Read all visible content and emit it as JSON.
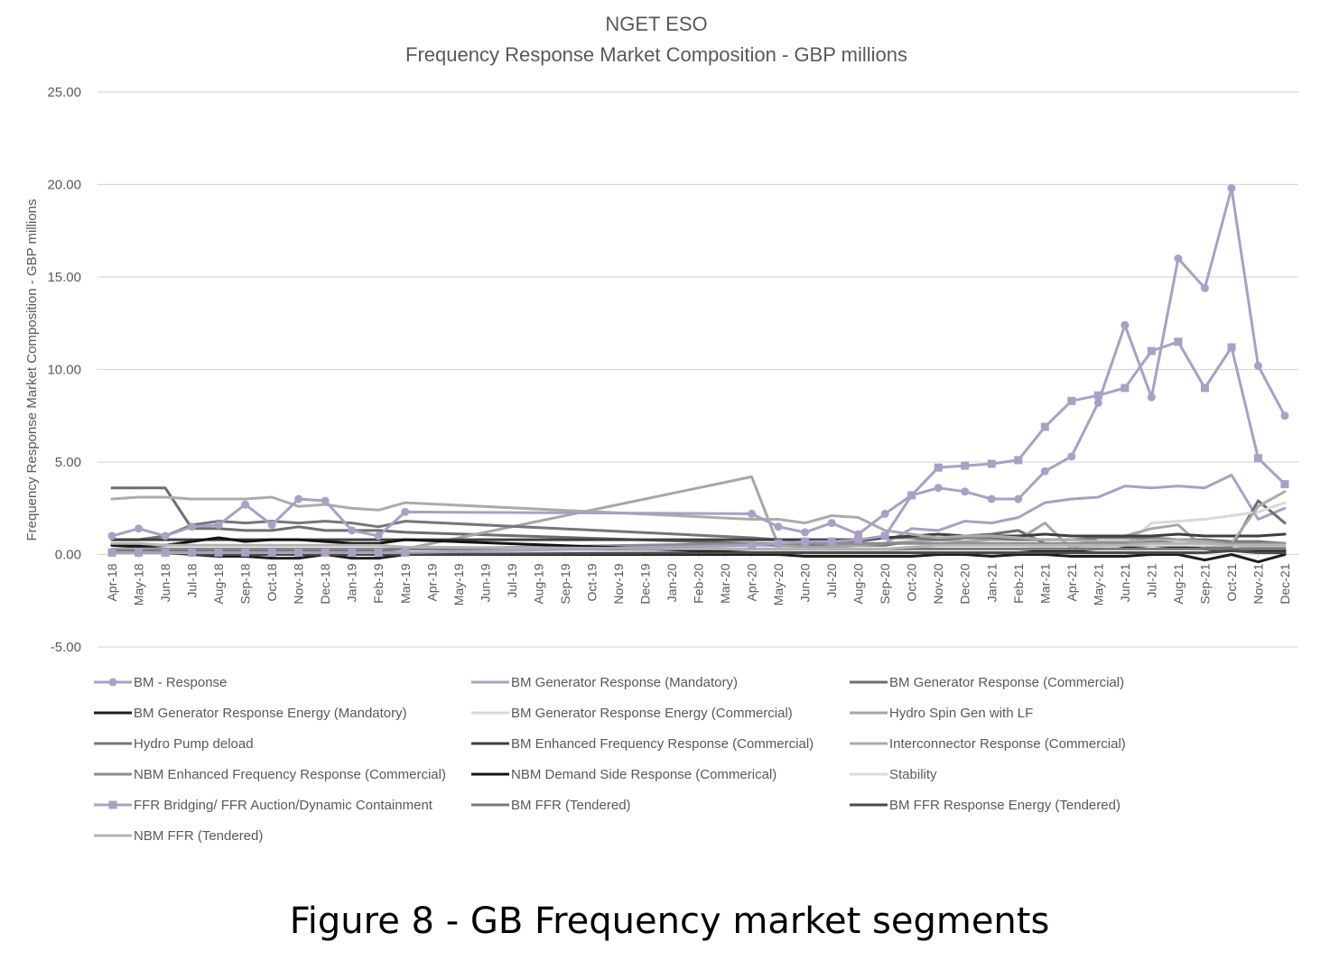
{
  "caption": "Figure 8 - GB Frequency market segments",
  "chart_data": {
    "type": "line",
    "title": "NGET ESO",
    "subtitle": "Frequency Response Market Composition - GBP millions",
    "xlabel": "",
    "ylabel": "Frequency Response Market Composition - GBP millions",
    "ylim": [
      -5,
      25
    ],
    "yticks": [
      -5,
      0,
      5,
      10,
      15,
      20,
      25
    ],
    "ytick_labels": [
      "-5.00",
      "0.00",
      "5.00",
      "10.00",
      "15.00",
      "20.00",
      "25.00"
    ],
    "grid": true,
    "legend_position": "bottom",
    "categories": [
      "Apr-18",
      "May-18",
      "Jun-18",
      "Jul-18",
      "Aug-18",
      "Sep-18",
      "Oct-18",
      "Nov-18",
      "Dec-18",
      "Jan-19",
      "Feb-19",
      "Mar-19",
      "Apr-19",
      "May-19",
      "Jun-19",
      "Jul-19",
      "Aug-19",
      "Sep-19",
      "Oct-19",
      "Nov-19",
      "Dec-19",
      "Jan-20",
      "Feb-20",
      "Mar-20",
      "Apr-20",
      "May-20",
      "Jun-20",
      "Jul-20",
      "Aug-20",
      "Sep-20",
      "Oct-20",
      "Nov-20",
      "Dec-20",
      "Jan-21",
      "Feb-21",
      "Mar-21",
      "Apr-21",
      "May-21",
      "Jun-21",
      "Jul-21",
      "Aug-21",
      "Sep-21",
      "Oct-21",
      "Nov-21",
      "Dec-21"
    ],
    "series": [
      {
        "name": "BM - Response",
        "color": "#aa9fc4",
        "width": 3,
        "marker": "circle",
        "values": [
          1.0,
          1.4,
          1.0,
          1.5,
          1.6,
          2.7,
          1.6,
          3.0,
          2.9,
          1.3,
          1.0,
          2.3,
          null,
          null,
          null,
          null,
          null,
          null,
          null,
          null,
          null,
          null,
          null,
          null,
          2.2,
          1.5,
          1.2,
          1.7,
          1.1,
          2.2,
          3.2,
          3.6,
          3.4,
          3.0,
          3.0,
          4.5,
          5.3,
          8.2,
          12.4,
          8.5,
          16.0,
          14.4,
          19.8,
          10.2,
          7.5
        ]
      },
      {
        "name": "BM Generator Response (Mandatory)",
        "color": "#aa9fc4",
        "width": 3,
        "marker": "none",
        "values": [
          0.2,
          0.2,
          0.2,
          0.2,
          0.2,
          0.2,
          0.2,
          0.2,
          0.2,
          0.2,
          0.2,
          0.3,
          null,
          null,
          null,
          null,
          null,
          null,
          null,
          null,
          null,
          null,
          null,
          null,
          0.5,
          0.5,
          0.5,
          0.5,
          0.5,
          0.6,
          1.4,
          1.3,
          1.8,
          1.7,
          2.0,
          2.8,
          3.0,
          3.1,
          3.7,
          3.6,
          3.7,
          3.6,
          4.3,
          1.9,
          2.5
        ]
      },
      {
        "name": "BM Generator Response (Commercial)",
        "color": "#6e6e6e",
        "width": 3,
        "marker": "none",
        "values": [
          3.6,
          3.6,
          3.6,
          1.4,
          1.4,
          1.3,
          1.3,
          1.5,
          1.3,
          1.3,
          1.3,
          1.2,
          null,
          null,
          null,
          null,
          null,
          null,
          null,
          null,
          null,
          null,
          null,
          null,
          0.6,
          0.5,
          0.5,
          0.4,
          0.5,
          0.5,
          0.7,
          0.8,
          1.0,
          1.1,
          1.3,
          0.6,
          0.5,
          0.5,
          0.6,
          0.7,
          0.6,
          0.4,
          0.4,
          2.9,
          1.7
        ]
      },
      {
        "name": "BM Generator Response Energy (Mandatory)",
        "color": "#1e1e1e",
        "width": 3,
        "marker": "none",
        "values": [
          0.5,
          0.4,
          0.3,
          0.0,
          -0.1,
          -0.1,
          -0.2,
          -0.2,
          0.0,
          -0.2,
          -0.2,
          0.0,
          null,
          null,
          null,
          null,
          null,
          null,
          null,
          null,
          null,
          null,
          null,
          null,
          0.0,
          0.0,
          -0.1,
          -0.1,
          -0.1,
          -0.1,
          -0.1,
          0.0,
          0.0,
          -0.1,
          0.0,
          0.0,
          -0.1,
          -0.1,
          -0.1,
          0.0,
          0.0,
          -0.3,
          0.0,
          -0.4,
          0.0
        ]
      },
      {
        "name": "BM Generator Response Energy (Commercial)",
        "color": "#d9d9d9",
        "width": 3,
        "marker": "none",
        "values": [
          0.2,
          0.2,
          0.2,
          0.2,
          0.1,
          0.1,
          0.1,
          0.1,
          0.1,
          0.1,
          0.1,
          0.1,
          null,
          null,
          null,
          null,
          null,
          null,
          null,
          null,
          null,
          null,
          null,
          null,
          0.2,
          0.2,
          0.2,
          0.2,
          0.2,
          0.2,
          0.3,
          0.3,
          0.3,
          0.3,
          0.3,
          0.4,
          0.3,
          0.4,
          0.5,
          1.7,
          1.8,
          1.9,
          2.1,
          2.3,
          2.8
        ]
      },
      {
        "name": "Hydro Spin Gen with LF",
        "color": "#a6a6a6",
        "width": 3,
        "marker": "none",
        "values": [
          0.3,
          0.3,
          0.3,
          0.3,
          0.3,
          0.3,
          0.3,
          0.3,
          0.3,
          0.3,
          0.3,
          0.3,
          null,
          null,
          null,
          null,
          null,
          null,
          null,
          null,
          null,
          null,
          null,
          null,
          4.2,
          0.5,
          0.4,
          0.4,
          0.5,
          0.6,
          0.7,
          0.8,
          0.7,
          0.8,
          0.8,
          1.7,
          0.3,
          0.9,
          1.0,
          1.4,
          1.6,
          0.3,
          0.3,
          0.4,
          0.4
        ]
      },
      {
        "name": "Hydro Pump deload",
        "color": "#767676",
        "width": 3,
        "marker": "none",
        "values": [
          0.8,
          0.8,
          1.0,
          1.6,
          1.8,
          1.7,
          1.8,
          1.7,
          1.8,
          1.7,
          1.5,
          1.8,
          null,
          null,
          null,
          null,
          null,
          null,
          null,
          null,
          null,
          null,
          null,
          null,
          0.9,
          0.8,
          0.8,
          0.7,
          0.7,
          0.9,
          0.9,
          0.8,
          0.9,
          0.9,
          0.8,
          0.8,
          0.8,
          0.9,
          0.9,
          0.9,
          0.8,
          0.8,
          0.7,
          0.7,
          0.6
        ]
      },
      {
        "name": "BM Enhanced Frequency Response (Commercial)",
        "color": "#3f3f3f",
        "width": 3,
        "marker": "none",
        "values": [
          0.8,
          0.8,
          0.8,
          0.8,
          0.8,
          0.8,
          0.8,
          0.8,
          0.8,
          0.8,
          0.8,
          0.8,
          null,
          null,
          null,
          null,
          null,
          null,
          null,
          null,
          null,
          null,
          null,
          null,
          0.8,
          0.8,
          0.8,
          0.8,
          0.8,
          0.9,
          1.0,
          1.1,
          1.0,
          1.0,
          1.0,
          1.1,
          1.0,
          1.0,
          1.0,
          1.0,
          1.1,
          1.0,
          1.0,
          1.0,
          1.1
        ]
      },
      {
        "name": "Interconnector Response (Commercial)",
        "color": "#ababab",
        "width": 3,
        "marker": "none",
        "values": [
          3.0,
          3.1,
          3.1,
          3.0,
          3.0,
          3.0,
          3.1,
          2.6,
          2.7,
          2.5,
          2.4,
          2.8,
          null,
          null,
          null,
          null,
          null,
          null,
          null,
          null,
          null,
          null,
          null,
          null,
          1.9,
          1.9,
          1.7,
          2.1,
          2.0,
          1.3,
          1.1,
          0.9,
          1.0,
          1.0,
          0.9,
          0.8,
          0.8,
          0.7,
          0.7,
          0.8,
          0.8,
          0.7,
          0.6,
          2.6,
          3.4
        ]
      },
      {
        "name": "NBM Enhanced Frequency Response (Commercial)",
        "color": "#8c8c8c",
        "width": 3,
        "marker": "none",
        "values": [
          0.2,
          0.2,
          0.3,
          0.3,
          0.3,
          0.3,
          0.3,
          0.3,
          0.3,
          0.3,
          0.3,
          0.3,
          null,
          null,
          null,
          null,
          null,
          null,
          null,
          null,
          null,
          null,
          null,
          null,
          0.6,
          0.6,
          0.6,
          0.6,
          0.6,
          0.6,
          0.6,
          0.6,
          0.6,
          0.6,
          0.6,
          0.6,
          0.6,
          0.6,
          0.6,
          0.6,
          0.6,
          0.6,
          0.6,
          0.6,
          0.6
        ]
      },
      {
        "name": "NBM Demand Side Response (Commerical)",
        "color": "#141414",
        "width": 3,
        "marker": "none",
        "values": [
          0.5,
          0.5,
          0.5,
          0.7,
          0.9,
          0.7,
          0.8,
          0.8,
          0.7,
          0.6,
          0.6,
          0.8,
          null,
          null,
          null,
          null,
          null,
          null,
          null,
          null,
          null,
          null,
          null,
          null,
          0.1,
          0.1,
          0.1,
          0.1,
          0.1,
          0.1,
          0.1,
          0.1,
          0.1,
          0.1,
          0.1,
          0.2,
          0.2,
          0.3,
          0.4,
          0.5,
          0.4,
          0.3,
          0.2,
          0.2,
          0.2
        ]
      },
      {
        "name": "Stability",
        "color": "#dcdcdc",
        "width": 3,
        "marker": "none",
        "values": [
          null,
          null,
          null,
          null,
          null,
          null,
          null,
          null,
          null,
          null,
          null,
          null,
          null,
          null,
          null,
          null,
          null,
          null,
          null,
          null,
          null,
          null,
          null,
          null,
          null,
          null,
          null,
          null,
          null,
          0.3,
          0.3,
          0.3,
          0.3,
          0.3,
          0.3,
          0.3,
          0.3,
          0.3,
          0.5,
          0.5,
          0.5,
          0.5,
          0.5,
          0.5,
          0.5
        ]
      },
      {
        "name": "FFR Bridging/ FFR Auction/Dynamic Containment",
        "color": "#aa9fc4",
        "width": 3,
        "marker": "square",
        "values": [
          0.1,
          0.1,
          0.1,
          0.1,
          0.1,
          0.1,
          0.1,
          0.1,
          0.1,
          0.1,
          0.1,
          0.1,
          null,
          null,
          null,
          null,
          null,
          null,
          null,
          null,
          null,
          null,
          null,
          null,
          0.5,
          0.6,
          0.7,
          0.7,
          0.8,
          1.0,
          3.2,
          4.7,
          4.8,
          4.9,
          5.1,
          6.9,
          8.3,
          8.6,
          9.0,
          11.0,
          11.5,
          9.0,
          11.2,
          5.2,
          3.8
        ]
      },
      {
        "name": "BM FFR (Tendered)",
        "color": "#7a7a7a",
        "width": 3,
        "marker": "none",
        "values": [
          0.2,
          0.2,
          0.2,
          0.2,
          0.2,
          0.2,
          0.2,
          0.2,
          0.2,
          0.2,
          0.2,
          0.3,
          null,
          null,
          null,
          null,
          null,
          null,
          null,
          null,
          null,
          null,
          null,
          null,
          0.3,
          0.3,
          0.3,
          0.3,
          0.3,
          0.3,
          0.3,
          0.3,
          0.3,
          0.3,
          0.3,
          0.3,
          0.3,
          0.3,
          0.3,
          0.3,
          0.3,
          0.3,
          0.3,
          0.3,
          0.3
        ]
      },
      {
        "name": "BM FFR  Response Energy (Tendered)",
        "color": "#4a4a4a",
        "width": 3,
        "marker": "none",
        "values": [
          0.1,
          0.1,
          0.1,
          0.0,
          0.0,
          0.0,
          0.0,
          0.0,
          0.0,
          0.0,
          0.0,
          0.0,
          null,
          null,
          null,
          null,
          null,
          null,
          null,
          null,
          null,
          null,
          null,
          null,
          0.1,
          0.1,
          0.1,
          0.1,
          0.1,
          0.1,
          0.1,
          0.1,
          0.1,
          0.1,
          0.1,
          0.1,
          0.1,
          0.1,
          0.1,
          0.1,
          0.1,
          0.1,
          0.2,
          0.1,
          0.1
        ]
      },
      {
        "name": "NBM FFR (Tendered)",
        "color": "#b4b4b4",
        "width": 3,
        "marker": "none",
        "values": [
          0.6,
          0.6,
          0.5,
          0.5,
          0.5,
          0.5,
          0.5,
          0.5,
          0.5,
          0.5,
          0.5,
          0.4,
          null,
          null,
          null,
          null,
          null,
          null,
          null,
          null,
          null,
          null,
          null,
          null,
          0.3,
          0.3,
          0.3,
          0.3,
          0.3,
          0.3,
          0.4,
          0.5,
          0.5,
          0.5,
          0.5,
          0.5,
          0.5,
          0.5,
          0.5,
          0.6,
          0.6,
          0.6,
          0.5,
          0.5,
          0.5
        ]
      }
    ]
  }
}
